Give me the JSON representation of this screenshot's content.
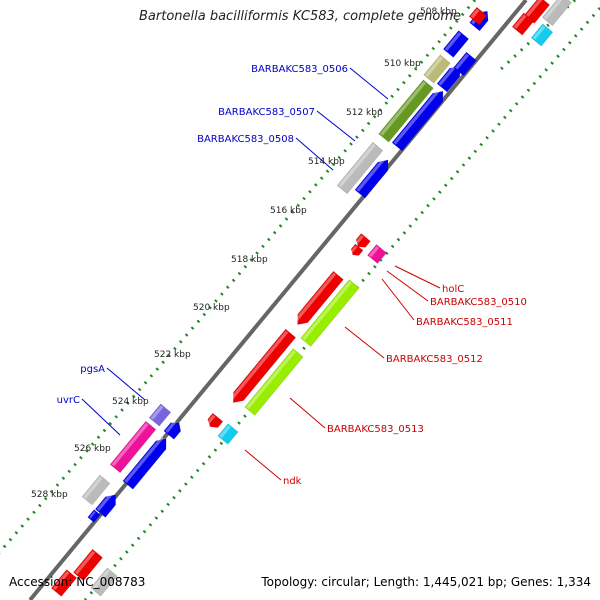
{
  "title": "Bartonella bacilliformis KC583, complete genome",
  "footer": {
    "accession": "Accession: NC_008783",
    "topology": "Topology: circular; Length: 1,445,021 bp; Genes: 1,334"
  },
  "colors": {
    "forward_outer": "#0000ee",
    "forward_inner": "#0000ee",
    "reverse_outer": "#ee0000",
    "reverse_inner": "#99ee00",
    "pink": "#ee1199",
    "cyan": "#11ccee",
    "violet": "#7766dd",
    "olive": "#669922",
    "khaki": "#bbbb77",
    "grey": "#bbbbbb",
    "backbone": "#666666",
    "tick_dots": "#228822",
    "label_blue": "#0000cc",
    "label_red": "#cc0000"
  },
  "tick_labels": [
    "508 kbp",
    "510 kbp",
    "512 kbp",
    "514 kbp",
    "516 kbp",
    "518 kbp",
    "520 kbp",
    "522 kbp",
    "524 kbp",
    "526 kbp",
    "528 kbp"
  ],
  "gene_labels": {
    "left": [
      {
        "text": "BARBAKC583_0506"
      },
      {
        "text": "BARBAKC583_0507"
      },
      {
        "text": "BARBAKC583_0508"
      },
      {
        "text": "pgsA"
      },
      {
        "text": "uvrC"
      }
    ],
    "right": [
      {
        "text": "holC"
      },
      {
        "text": "BARBAKC583_0510"
      },
      {
        "text": "BARBAKC583_0511"
      },
      {
        "text": "BARBAKC583_0512"
      },
      {
        "text": "BARBAKC583_0513"
      },
      {
        "text": "ndk"
      }
    ]
  }
}
